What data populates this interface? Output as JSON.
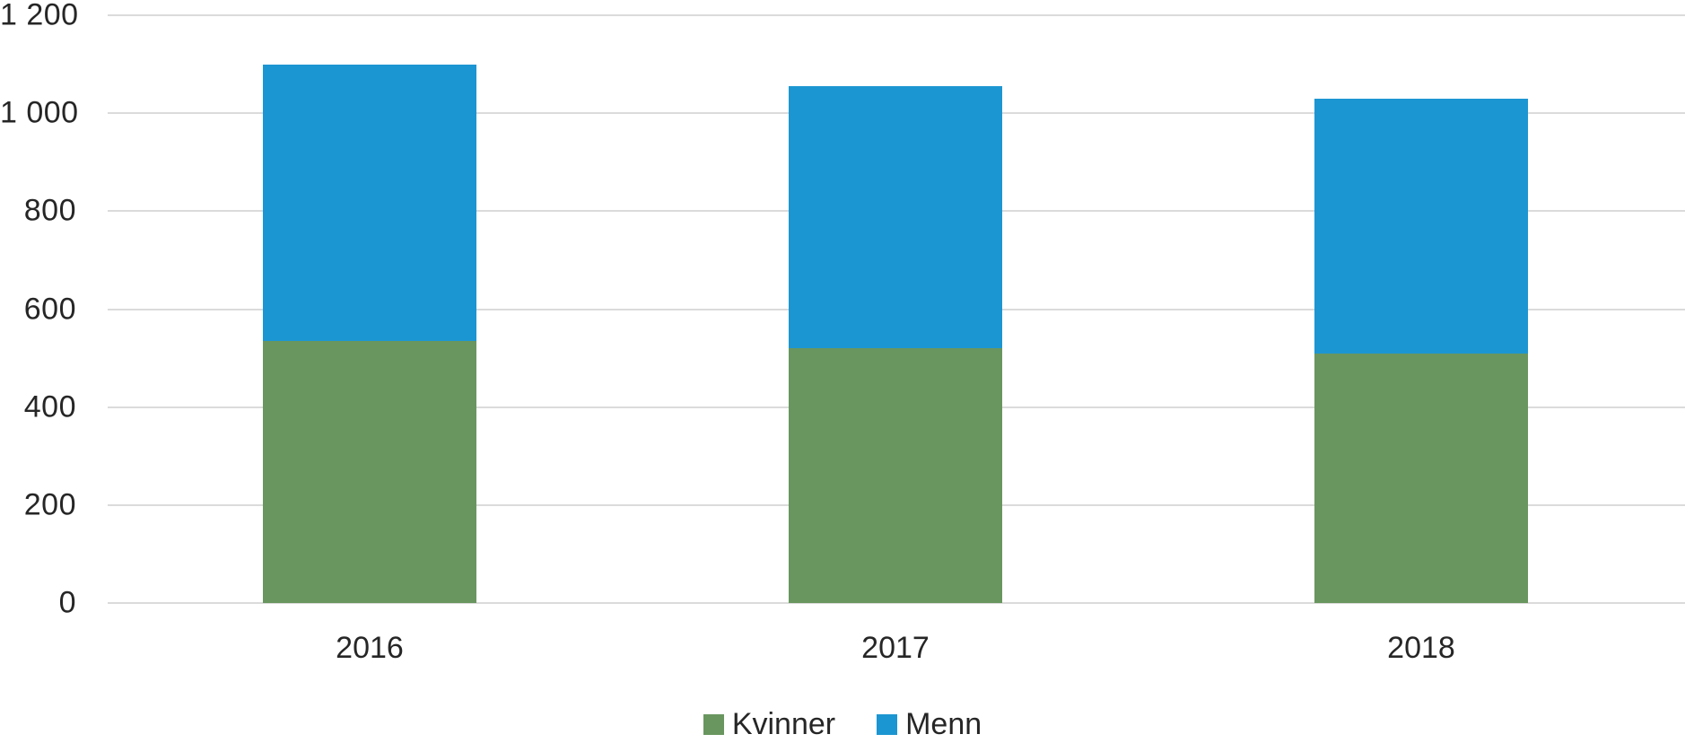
{
  "chart_data": {
    "type": "bar",
    "stacked": true,
    "title": "",
    "xlabel": "",
    "ylabel": "",
    "categories": [
      "2016",
      "2017",
      "2018"
    ],
    "series": [
      {
        "name": "Kvinner",
        "color": "#69965F",
        "values": [
          535,
          520,
          510
        ]
      },
      {
        "name": "Menn",
        "color": "#1C96D2",
        "values": [
          565,
          535,
          520
        ]
      }
    ],
    "totals": [
      1100,
      1055,
      1030
    ],
    "ylim": [
      0,
      1200
    ],
    "ytick_step": 200,
    "ytick_values": [
      0,
      200,
      400,
      600,
      800,
      1000,
      1200
    ],
    "ytick_labels": [
      "0",
      "200",
      "400",
      "600",
      "800",
      "1 000",
      "1 200"
    ],
    "grid": true,
    "gridline_color": "#dbdbdb",
    "text_color": "#262626",
    "background_color": "#ffffff",
    "legend_position": "bottom"
  }
}
